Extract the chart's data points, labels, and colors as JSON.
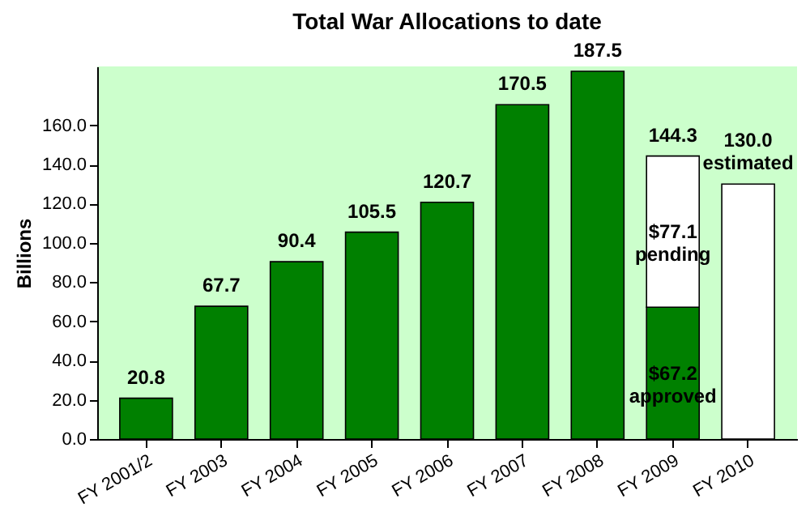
{
  "chart_data": {
    "type": "bar",
    "title": "Total War Allocations to date",
    "ylabel": "Billions",
    "stacked": true,
    "categories": [
      "FY 2001/2",
      "FY 2003",
      "FY 2004",
      "FY 2005",
      "FY 2006",
      "FY 2007",
      "FY 2008",
      "FY 2009",
      "FY 2010"
    ],
    "series": [
      {
        "color": "#008000",
        "values": [
          20.8,
          67.7,
          90.4,
          105.5,
          120.7,
          170.5,
          187.5,
          67.2,
          null
        ],
        "value_labels": [
          "20.8",
          "67.7",
          "90.4",
          "105.5",
          "120.7",
          "170.5",
          "187.5",
          "$67.2\napproved",
          null
        ]
      },
      {
        "color": "#ffffff",
        "values": [
          null,
          null,
          null,
          null,
          null,
          null,
          null,
          77.1,
          130.0
        ],
        "value_labels": [
          null,
          null,
          null,
          null,
          null,
          null,
          null,
          "$77.1\npending",
          "130.0\nestimated"
        ]
      }
    ],
    "totals": [
      null,
      null,
      null,
      null,
      null,
      null,
      null,
      "144.3",
      null
    ],
    "ylim": [
      0,
      190
    ],
    "yticks": [
      {
        "value": 0,
        "label": "0.0"
      },
      {
        "value": 20,
        "label": "20.0"
      },
      {
        "value": 40,
        "label": "40.0"
      },
      {
        "value": 60,
        "label": "60.0"
      },
      {
        "value": 80,
        "label": "80.0"
      },
      {
        "value": 100,
        "label": "100.0"
      },
      {
        "value": 120,
        "label": "120.0"
      },
      {
        "value": 140,
        "label": "140.0"
      },
      {
        "value": 160,
        "label": "160.0"
      }
    ],
    "grid": false
  }
}
